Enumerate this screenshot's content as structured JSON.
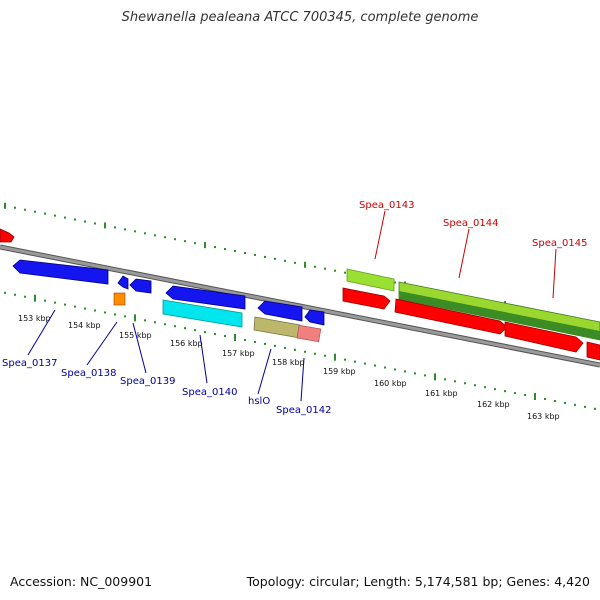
{
  "title": "Shewanella pealeana ATCC 700345, complete genome",
  "footer": {
    "accession": "Accession: NC_009901",
    "summary": "Topology: circular; Length: 5,174,581 bp; Genes: 4,420"
  },
  "colors": {
    "forward_label": "#cc0000",
    "reverse_label": "#000099",
    "backbone": "#808080",
    "ticks": "#2e8b2e"
  },
  "ruler": [
    "153 kbp",
    "154 kbp",
    "155 kbp",
    "156 kbp",
    "157 kbp",
    "158 kbp",
    "159 kbp",
    "160 kbp",
    "161 kbp",
    "162 kbp",
    "163 kbp"
  ],
  "forward_labels": [
    "Spea_0143",
    "Spea_0144",
    "Spea_0145"
  ],
  "reverse_labels": [
    "Spea_0137",
    "Spea_0138",
    "Spea_0139",
    "Spea_0140",
    "hslO",
    "Spea_0142"
  ]
}
